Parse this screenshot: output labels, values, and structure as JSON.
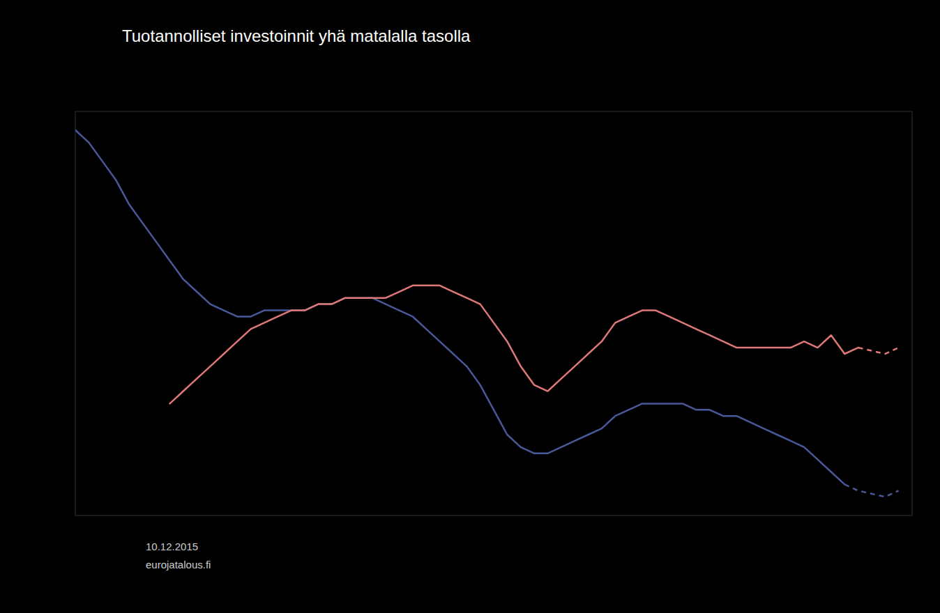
{
  "chart_data": {
    "type": "line",
    "title": "Tuotannolliset investoinnit yhä matalalla tasolla",
    "annotations": [
      "10.12.2015",
      "eurojatalous.fi"
    ],
    "xlim": [
      2001.0,
      2016.5
    ],
    "ylim": [
      50,
      115
    ],
    "tick_labels": false,
    "grid": false,
    "series": [
      {
        "color": "#4a5899",
        "line_style": "solid",
        "x": [
          2001.0,
          2001.25,
          2001.5,
          2001.75,
          2002.0,
          2002.25,
          2002.5,
          2002.75,
          2003.0,
          2003.25,
          2003.5,
          2003.75,
          2004.0,
          2004.25,
          2004.5,
          2004.75,
          2005.0,
          2005.25,
          2005.5,
          2005.75,
          2006.0,
          2006.25,
          2006.5,
          2006.75,
          2007.0,
          2007.25,
          2007.5,
          2007.75,
          2008.0,
          2008.25,
          2008.5,
          2008.75,
          2009.0,
          2009.25,
          2009.5,
          2009.75,
          2010.0,
          2010.25,
          2010.5,
          2010.75,
          2011.0,
          2011.25,
          2011.5,
          2011.75,
          2012.0,
          2012.25,
          2012.5,
          2012.75,
          2013.0,
          2013.25,
          2013.5,
          2013.75,
          2014.0,
          2014.25,
          2014.5,
          2014.75,
          2015.0,
          2015.25
        ],
        "values": [
          112,
          110,
          107,
          104,
          100,
          97,
          94,
          91,
          88,
          86,
          84,
          83,
          82,
          82,
          83,
          83,
          83,
          83,
          84,
          84,
          85,
          85,
          85,
          84,
          83,
          82,
          80,
          78,
          76,
          74,
          71,
          67,
          63,
          61,
          60,
          60,
          61,
          62,
          63,
          64,
          66,
          67,
          68,
          68,
          68,
          68,
          67,
          67,
          66,
          66,
          65,
          64,
          63,
          62,
          61,
          59,
          57,
          55
        ]
      },
      {
        "color": "#4a5899",
        "line_style": "dashed",
        "x": [
          2015.25,
          2015.5,
          2016.0,
          2016.25
        ],
        "values": [
          55,
          54,
          53,
          54
        ]
      },
      {
        "color": "#e07878",
        "line_style": "solid",
        "x": [
          2002.75,
          2003.0,
          2003.25,
          2003.5,
          2003.75,
          2004.0,
          2004.25,
          2004.5,
          2004.75,
          2005.0,
          2005.25,
          2005.5,
          2005.75,
          2006.0,
          2006.25,
          2006.5,
          2006.75,
          2007.0,
          2007.25,
          2007.5,
          2007.75,
          2008.0,
          2008.25,
          2008.5,
          2008.75,
          2009.0,
          2009.25,
          2009.5,
          2009.75,
          2010.0,
          2010.25,
          2010.5,
          2010.75,
          2011.0,
          2011.25,
          2011.5,
          2011.75,
          2012.0,
          2012.25,
          2012.5,
          2012.75,
          2013.0,
          2013.25,
          2013.5,
          2013.75,
          2014.0,
          2014.25,
          2014.5,
          2014.75,
          2015.0,
          2015.25,
          2015.5
        ],
        "values": [
          68,
          70,
          72,
          74,
          76,
          78,
          80,
          81,
          82,
          83,
          83,
          84,
          84,
          85,
          85,
          85,
          85,
          86,
          87,
          87,
          87,
          86,
          85,
          84,
          81,
          78,
          74,
          71,
          70,
          72,
          74,
          76,
          78,
          81,
          82,
          83,
          83,
          82,
          81,
          80,
          79,
          78,
          77,
          77,
          77,
          77,
          77,
          78,
          77,
          79,
          76,
          77
        ]
      },
      {
        "color": "#e07878",
        "line_style": "dashed",
        "x": [
          2015.5,
          2016.0,
          2016.25
        ],
        "values": [
          77,
          76,
          77
        ]
      }
    ]
  }
}
